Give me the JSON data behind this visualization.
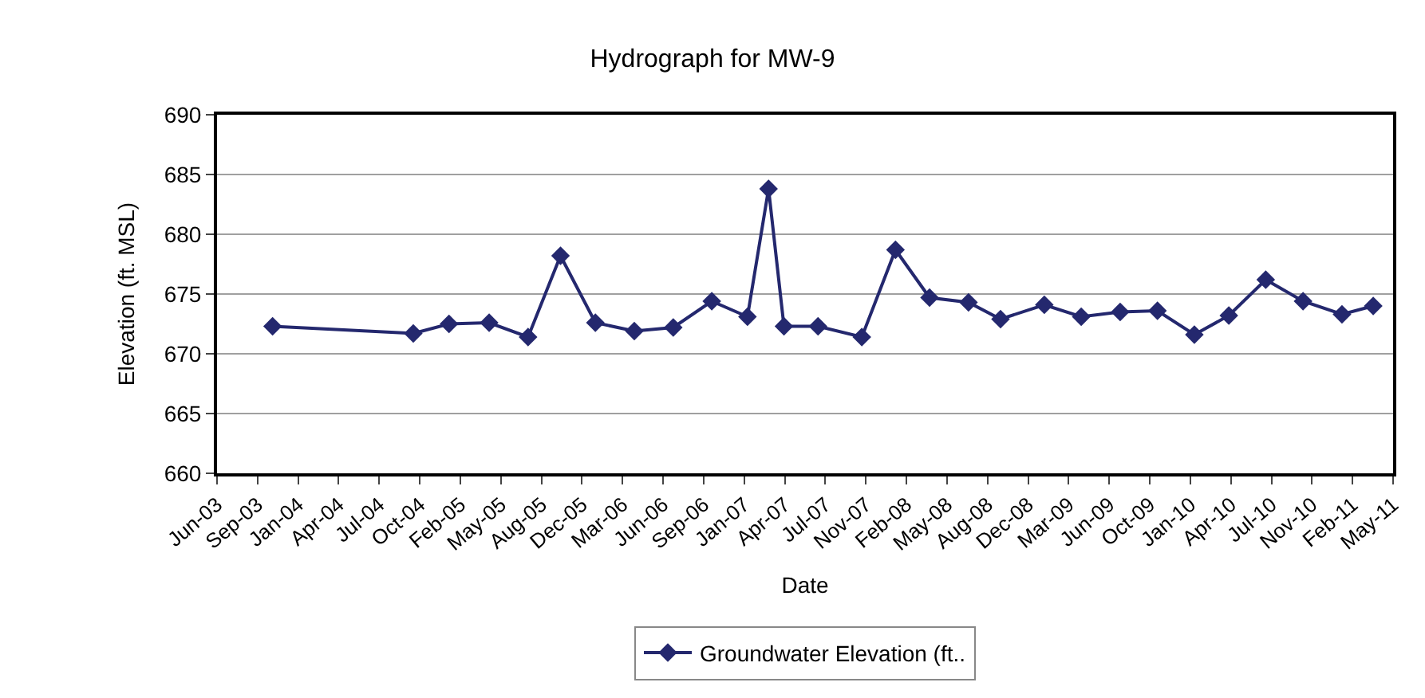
{
  "chart_data": {
    "type": "line",
    "title": "Hydrograph for MW-9",
    "xlabel": "Date",
    "ylabel": "Elevation (ft. MSL)",
    "x": [
      "2003-11-02",
      "2004-10-14",
      "2005-01-10",
      "2005-04-19",
      "2005-07-24",
      "2005-10-12",
      "2006-01-06",
      "2006-04-12",
      "2006-07-17",
      "2006-10-20",
      "2007-01-16",
      "2007-03-09",
      "2007-04-16",
      "2007-07-09",
      "2007-10-25",
      "2008-01-16",
      "2008-04-09",
      "2008-07-14",
      "2008-10-01",
      "2009-01-17",
      "2009-04-18",
      "2009-07-23",
      "2009-10-23",
      "2010-01-22",
      "2010-04-17",
      "2010-07-17",
      "2010-10-17",
      "2011-01-21",
      "2011-04-08"
    ],
    "series": [
      {
        "name": "Groundwater Elevation (ft..",
        "color": "#24286e",
        "values": [
          672.3,
          671.7,
          672.5,
          672.6,
          671.4,
          678.2,
          672.6,
          671.9,
          672.2,
          674.4,
          673.1,
          683.8,
          672.3,
          672.3,
          671.4,
          678.7,
          674.7,
          674.3,
          672.9,
          674.1,
          673.1,
          673.5,
          673.6,
          671.6,
          673.2,
          676.2,
          674.4,
          673.3,
          674.0
        ]
      }
    ],
    "xlim": [
      "2003-06-18",
      "2011-05-27"
    ],
    "xticks": [
      {
        "value": "2003-06-18",
        "label": "Jun-03"
      },
      {
        "value": "2003-09-26",
        "label": "Sep-03"
      },
      {
        "value": "2004-01-04",
        "label": "Jan-04"
      },
      {
        "value": "2004-04-13",
        "label": "Apr-04"
      },
      {
        "value": "2004-07-22",
        "label": "Jul-04"
      },
      {
        "value": "2004-10-30",
        "label": "Oct-04"
      },
      {
        "value": "2005-02-07",
        "label": "Feb-05"
      },
      {
        "value": "2005-05-18",
        "label": "May-05"
      },
      {
        "value": "2005-08-26",
        "label": "Aug-05"
      },
      {
        "value": "2005-12-04",
        "label": "Dec-05"
      },
      {
        "value": "2006-03-14",
        "label": "Mar-06"
      },
      {
        "value": "2006-06-22",
        "label": "Jun-06"
      },
      {
        "value": "2006-09-30",
        "label": "Sep-06"
      },
      {
        "value": "2007-01-08",
        "label": "Jan-07"
      },
      {
        "value": "2007-04-18",
        "label": "Apr-07"
      },
      {
        "value": "2007-07-27",
        "label": "Jul-07"
      },
      {
        "value": "2007-11-04",
        "label": "Nov-07"
      },
      {
        "value": "2008-02-12",
        "label": "Feb-08"
      },
      {
        "value": "2008-05-22",
        "label": "May-08"
      },
      {
        "value": "2008-08-30",
        "label": "Aug-08"
      },
      {
        "value": "2008-12-08",
        "label": "Dec-08"
      },
      {
        "value": "2009-03-18",
        "label": "Mar-09"
      },
      {
        "value": "2009-06-26",
        "label": "Jun-09"
      },
      {
        "value": "2009-10-04",
        "label": "Oct-09"
      },
      {
        "value": "2010-01-12",
        "label": "Jan-10"
      },
      {
        "value": "2010-04-22",
        "label": "Apr-10"
      },
      {
        "value": "2010-07-31",
        "label": "Jul-10"
      },
      {
        "value": "2010-11-08",
        "label": "Nov-10"
      },
      {
        "value": "2011-02-16",
        "label": "Feb-11"
      },
      {
        "value": "2011-05-27",
        "label": "May-11"
      }
    ],
    "ylim": [
      660,
      690
    ],
    "yticks": [
      660,
      665,
      670,
      675,
      680,
      685,
      690
    ],
    "grid": "y",
    "legend": "bottom",
    "marker": "diamond",
    "line_style": "solid"
  }
}
